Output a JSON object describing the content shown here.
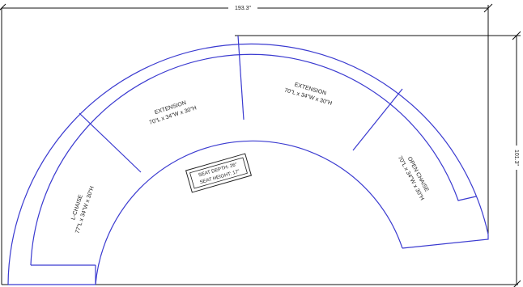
{
  "dimensions": {
    "width": "193.3\"",
    "height": "101.3\""
  },
  "pieces": [
    {
      "label": "L-CHAISE",
      "size": "77\"L x 34\"W x 30\"H"
    },
    {
      "label": "EXTENSION",
      "size": "70\"L x 34\"W x 30\"H"
    },
    {
      "label": "EXTENSION",
      "size": "70\"L x 34\"W x 30\"H"
    },
    {
      "label": "OPEN CHAISE",
      "size": "70\"L x 34\"W x 30\"H"
    }
  ],
  "seat_info": {
    "depth": "SEAT DEPTH: 26\"",
    "height": "SEAT HEIGHT: 17\""
  }
}
